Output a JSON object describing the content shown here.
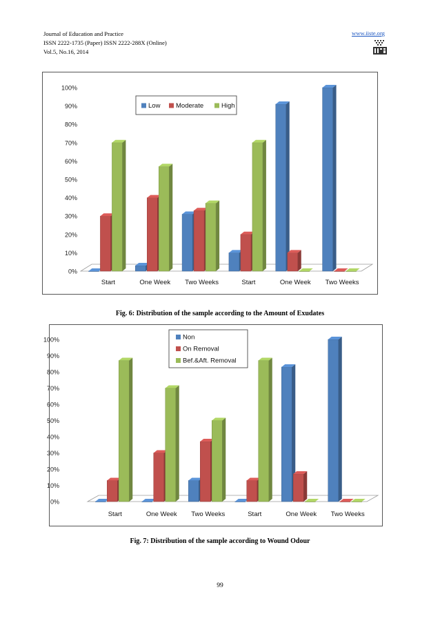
{
  "header": {
    "lines": [
      "Journal of Education and Practice",
      "ISSN 2222-1735 (Paper)   ISSN 2222-288X (Online)",
      "Vol.5, No.16, 2014"
    ],
    "url": "www.iiste.org",
    "logo_text": "IISTE"
  },
  "figures": [
    {
      "caption": "Fig. 6: Distribution of the sample according to the Amount of Exudates"
    },
    {
      "caption": "Fig. 7: Distribution of the sample according to Wound Odour"
    }
  ],
  "page_number": "99",
  "colors": {
    "blue": "#4F81BD",
    "red": "#C0504D",
    "green": "#9BBB59"
  },
  "chart_data": [
    {
      "type": "bar",
      "title": "",
      "categories": [
        "Start",
        "One Week",
        "Two Weeks",
        "Start",
        "One Week",
        "Two Weeks"
      ],
      "series": [
        {
          "name": "Low",
          "values": [
            0,
            3,
            31,
            10,
            91,
            100
          ]
        },
        {
          "name": "Moderate",
          "values": [
            30,
            40,
            33,
            20,
            10,
            0
          ]
        },
        {
          "name": "High",
          "values": [
            70,
            57,
            37,
            70,
            0,
            0
          ]
        }
      ],
      "yticks": [
        "0%",
        "10%",
        "20%",
        "30%",
        "40%",
        "50%",
        "60%",
        "70%",
        "80%",
        "90%",
        "100%"
      ],
      "ylim": [
        0,
        100
      ],
      "legend_position": "top",
      "grid": false
    },
    {
      "type": "bar",
      "title": "",
      "categories": [
        "Start",
        "One Week",
        "Two Weeks",
        "Start",
        "One Week",
        "Two Weeks"
      ],
      "series": [
        {
          "name": "Non",
          "values": [
            0,
            0,
            13,
            0,
            83,
            100
          ]
        },
        {
          "name": "On Removal",
          "values": [
            13,
            30,
            37,
            13,
            17,
            0
          ]
        },
        {
          "name": "Bef.&Aft. Removal",
          "values": [
            87,
            70,
            50,
            87,
            0,
            0
          ]
        }
      ],
      "yticks": [
        "0%",
        "10%",
        "20%",
        "30%",
        "40%",
        "50%",
        "60%",
        "70%",
        "80%",
        "90%",
        "100%"
      ],
      "ylim": [
        0,
        100
      ],
      "legend_position": "top",
      "grid": false
    }
  ]
}
